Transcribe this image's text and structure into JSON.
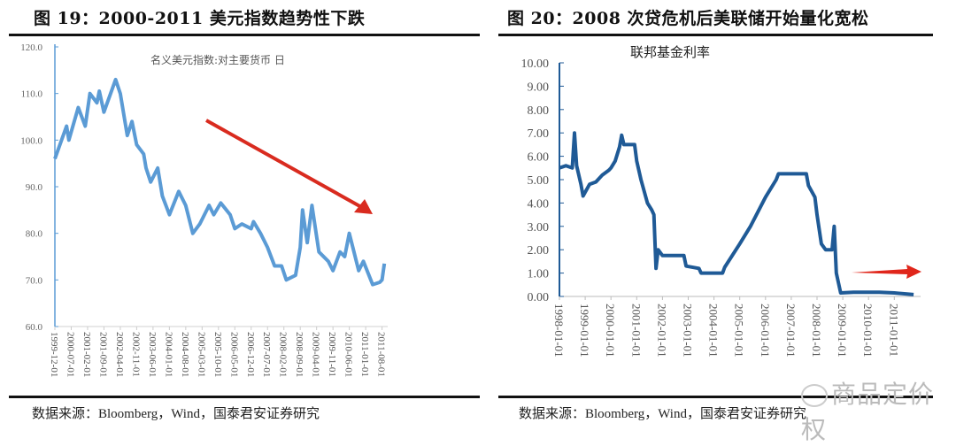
{
  "figures": [
    {
      "title": "图 19：2000-2011 美元指数趋势性下跌",
      "source": "数据来源：Bloomberg，Wind，国泰君安证券研究"
    },
    {
      "title": "图 20：2008 次贷危机后美联储开始量化宽松",
      "source": "数据来源：Bloomberg，Wind，国泰君安证券研究"
    }
  ],
  "watermark": "商品定价权",
  "chart_data": [
    {
      "type": "line",
      "title": "名义美元指数:对主要货币 日",
      "xlabel": "",
      "ylabel": "",
      "ylim": [
        60,
        120
      ],
      "yticks": [
        "60.0",
        "70.0",
        "80.0",
        "90.0",
        "100.0",
        "110.0",
        "120.0"
      ],
      "xticks": [
        "1999-12-01",
        "2000-07-01",
        "2001-02-01",
        "2001-09-01",
        "2002-04-01",
        "2002-11-01",
        "2003-06-01",
        "2004-01-01",
        "2004-08-01",
        "2005-03-01",
        "2005-10-01",
        "2006-05-01",
        "2006-12-01",
        "2007-07-01",
        "2008-02-01",
        "2008-09-01",
        "2009-04-01",
        "2009-11-01",
        "2010-06-01",
        "2011-01-01",
        "2011-08-01"
      ],
      "color": "#5b9bd5",
      "annotation": "red arrow pointing down-right (downtrend)",
      "x": [
        "1999-12",
        "2000-05",
        "2000-06",
        "2000-10",
        "2001-01",
        "2001-03",
        "2001-06",
        "2001-07",
        "2001-09",
        "2002-02",
        "2002-04",
        "2002-07",
        "2002-09",
        "2002-11",
        "2003-02",
        "2003-03",
        "2003-05",
        "2003-08",
        "2003-10",
        "2004-01",
        "2004-05",
        "2004-08",
        "2004-11",
        "2005-02",
        "2005-06",
        "2005-08",
        "2005-11",
        "2006-03",
        "2006-05",
        "2006-08",
        "2006-12",
        "2007-01",
        "2007-04",
        "2007-07",
        "2007-10",
        "2008-01",
        "2008-03",
        "2008-07",
        "2008-09",
        "2008-10",
        "2008-12",
        "2009-02",
        "2009-05",
        "2009-09",
        "2009-11",
        "2010-02",
        "2010-04",
        "2010-06",
        "2010-08",
        "2010-10",
        "2010-12",
        "2011-04",
        "2011-07",
        "2011-08",
        "2011-09"
      ],
      "y": [
        96,
        103,
        100,
        107,
        103,
        110,
        108,
        110.5,
        106,
        113,
        110,
        101,
        104,
        99,
        97,
        94,
        91,
        94,
        88,
        84,
        89,
        86,
        80,
        82,
        86,
        84,
        86.5,
        84,
        81,
        82,
        81,
        82.5,
        80,
        77,
        73,
        73,
        70,
        71,
        77,
        85,
        78,
        86,
        76,
        74,
        72,
        76,
        75,
        80,
        76,
        72,
        74,
        69,
        69.5,
        70,
        73.5
      ]
    },
    {
      "type": "line",
      "title": "联邦基金利率",
      "xlabel": "",
      "ylabel": "",
      "ylim": [
        0,
        10
      ],
      "yticks": [
        "0.00",
        "1.00",
        "2.00",
        "3.00",
        "4.00",
        "5.00",
        "6.00",
        "7.00",
        "8.00",
        "9.00",
        "10.00"
      ],
      "xticks": [
        "1998-01-01",
        "1999-01-01",
        "2000-01-01",
        "2001-01-01",
        "2002-01-01",
        "2003-01-01",
        "2004-01-01",
        "2005-01-01",
        "2006-01-01",
        "2007-01-01",
        "2008-01-01",
        "2009-01-01",
        "2010-01-01",
        "2011-01-01"
      ],
      "color": "#1f5a96",
      "annotation": "red arrow pointing right (near-zero rates)",
      "x": [
        "1998-01",
        "1998-04",
        "1998-07",
        "1998-08",
        "1998-09",
        "1998-11",
        "1998-12",
        "1999-03",
        "1999-06",
        "1999-09",
        "1999-12",
        "2000-01",
        "2000-03",
        "2000-05",
        "2000-06",
        "2000-07",
        "2000-12",
        "2001-01",
        "2001-03",
        "2001-06",
        "2001-08",
        "2001-09",
        "2001-10",
        "2001-11",
        "2002-01",
        "2002-11",
        "2002-12",
        "2003-06",
        "2003-07",
        "2004-05",
        "2004-06",
        "2005-01",
        "2005-06",
        "2006-01",
        "2006-06",
        "2006-07",
        "2007-08",
        "2007-09",
        "2007-12",
        "2008-01",
        "2008-03",
        "2008-05",
        "2008-08",
        "2008-09",
        "2008-10",
        "2008-12",
        "2009-06",
        "2010-06",
        "2011-01",
        "2011-10"
      ],
      "y": [
        5.5,
        5.6,
        5.5,
        7.0,
        5.6,
        4.8,
        4.3,
        4.8,
        4.9,
        5.2,
        5.4,
        5.5,
        5.8,
        6.4,
        6.9,
        6.5,
        6.5,
        5.8,
        5.0,
        4.0,
        3.7,
        3.5,
        1.2,
        2.0,
        1.75,
        1.75,
        1.3,
        1.2,
        1.0,
        1.0,
        1.25,
        2.25,
        3.0,
        4.25,
        5.0,
        5.25,
        5.25,
        4.75,
        4.25,
        3.5,
        2.25,
        2.0,
        2.0,
        3.0,
        1.0,
        0.15,
        0.18,
        0.18,
        0.15,
        0.08
      ]
    }
  ]
}
